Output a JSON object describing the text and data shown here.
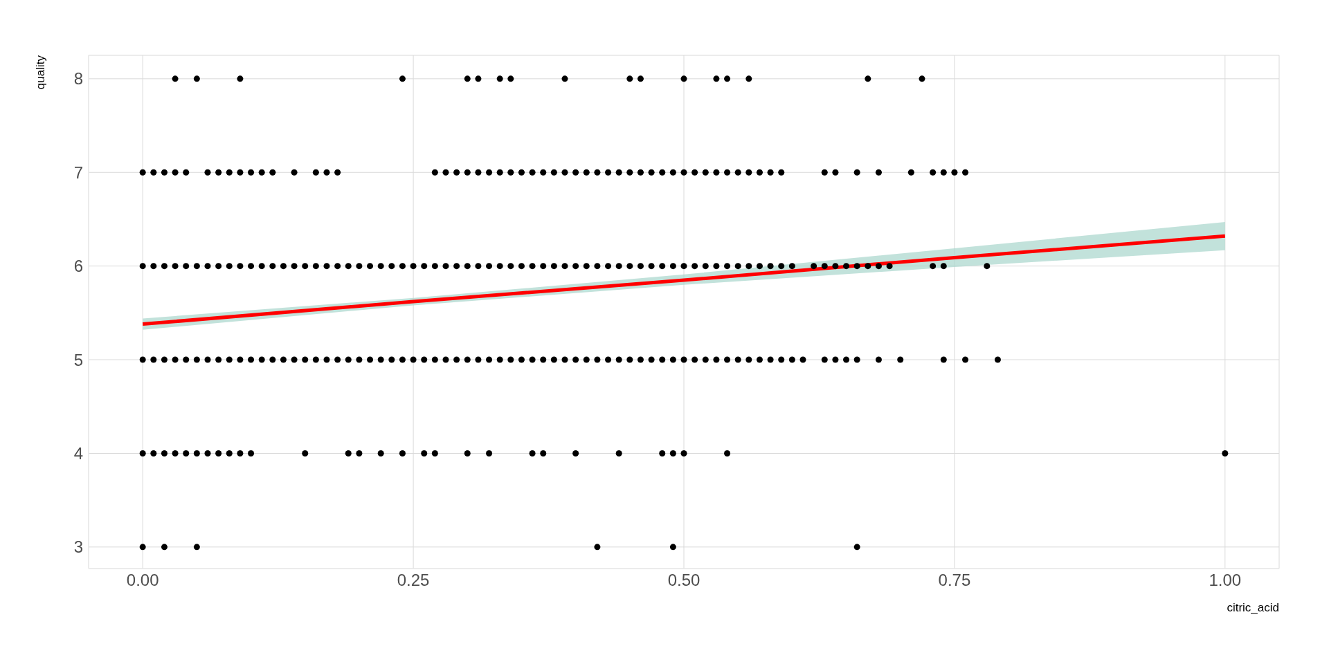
{
  "chart_data": {
    "type": "scatter",
    "xlabel": "citric_acid",
    "ylabel": "quality",
    "xlim": [
      -0.05,
      1.05
    ],
    "ylim": [
      2.77,
      8.25
    ],
    "xticks": [
      {
        "value": 0,
        "label": "0.00"
      },
      {
        "value": 0.25,
        "label": "0.25"
      },
      {
        "value": 0.5,
        "label": "0.50"
      },
      {
        "value": 0.75,
        "label": "0.75"
      },
      {
        "value": 1,
        "label": "1.00"
      }
    ],
    "yticks": [
      3,
      4,
      5,
      6,
      7,
      8
    ],
    "grid": true,
    "series": [
      {
        "marker": "circle",
        "color": "#000000",
        "x": [
          0.03,
          0.05,
          0.09,
          0.24,
          0.3,
          0.31,
          0.33,
          0.34,
          0.39,
          0.45,
          0.46,
          0.5,
          0.53,
          0.54,
          0.56,
          0.67,
          0.72
        ],
        "values": [
          8,
          8,
          8,
          8,
          8,
          8,
          8,
          8,
          8,
          8,
          8,
          8,
          8,
          8,
          8,
          8,
          8
        ]
      },
      {
        "marker": "circle",
        "color": "#000000",
        "x": [
          0,
          0.01,
          0.02,
          0.03,
          0.04,
          0.06,
          0.07,
          0.08,
          0.09,
          0.1,
          0.11,
          0.12,
          0.14,
          0.16,
          0.17,
          0.18,
          0.27,
          0.28,
          0.29,
          0.3,
          0.31,
          0.32,
          0.33,
          0.34,
          0.35,
          0.36,
          0.37,
          0.38,
          0.39,
          0.4,
          0.41,
          0.42,
          0.43,
          0.44,
          0.45,
          0.46,
          0.47,
          0.48,
          0.49,
          0.5,
          0.51,
          0.52,
          0.53,
          0.54,
          0.55,
          0.56,
          0.57,
          0.58,
          0.59,
          0.63,
          0.64,
          0.66,
          0.68,
          0.71,
          0.73,
          0.74,
          0.75,
          0.76
        ],
        "values": [
          7,
          7,
          7,
          7,
          7,
          7,
          7,
          7,
          7,
          7,
          7,
          7,
          7,
          7,
          7,
          7,
          7,
          7,
          7,
          7,
          7,
          7,
          7,
          7,
          7,
          7,
          7,
          7,
          7,
          7,
          7,
          7,
          7,
          7,
          7,
          7,
          7,
          7,
          7,
          7,
          7,
          7,
          7,
          7,
          7,
          7,
          7,
          7,
          7,
          7,
          7,
          7,
          7,
          7,
          7,
          7,
          7,
          7
        ]
      },
      {
        "marker": "circle",
        "color": "#000000",
        "x": [
          0,
          0.01,
          0.02,
          0.03,
          0.04,
          0.05,
          0.06,
          0.07,
          0.08,
          0.09,
          0.1,
          0.11,
          0.12,
          0.13,
          0.14,
          0.15,
          0.16,
          0.17,
          0.18,
          0.19,
          0.2,
          0.21,
          0.22,
          0.23,
          0.24,
          0.25,
          0.26,
          0.27,
          0.28,
          0.29,
          0.3,
          0.31,
          0.32,
          0.33,
          0.34,
          0.35,
          0.36,
          0.37,
          0.38,
          0.39,
          0.4,
          0.41,
          0.42,
          0.43,
          0.44,
          0.45,
          0.46,
          0.47,
          0.48,
          0.49,
          0.5,
          0.51,
          0.52,
          0.53,
          0.54,
          0.55,
          0.56,
          0.57,
          0.58,
          0.59,
          0.6,
          0.62,
          0.63,
          0.64,
          0.65,
          0.66,
          0.67,
          0.68,
          0.69,
          0.73,
          0.74,
          0.78
        ],
        "values": [
          6,
          6,
          6,
          6,
          6,
          6,
          6,
          6,
          6,
          6,
          6,
          6,
          6,
          6,
          6,
          6,
          6,
          6,
          6,
          6,
          6,
          6,
          6,
          6,
          6,
          6,
          6,
          6,
          6,
          6,
          6,
          6,
          6,
          6,
          6,
          6,
          6,
          6,
          6,
          6,
          6,
          6,
          6,
          6,
          6,
          6,
          6,
          6,
          6,
          6,
          6,
          6,
          6,
          6,
          6,
          6,
          6,
          6,
          6,
          6,
          6,
          6,
          6,
          6,
          6,
          6,
          6,
          6,
          6,
          6,
          6,
          6
        ]
      },
      {
        "marker": "circle",
        "color": "#000000",
        "x": [
          0,
          0.01,
          0.02,
          0.03,
          0.04,
          0.05,
          0.06,
          0.07,
          0.08,
          0.09,
          0.1,
          0.11,
          0.12,
          0.13,
          0.14,
          0.15,
          0.16,
          0.17,
          0.18,
          0.19,
          0.2,
          0.21,
          0.22,
          0.23,
          0.24,
          0.25,
          0.26,
          0.27,
          0.28,
          0.29,
          0.3,
          0.31,
          0.32,
          0.33,
          0.34,
          0.35,
          0.36,
          0.37,
          0.38,
          0.39,
          0.4,
          0.41,
          0.42,
          0.43,
          0.44,
          0.45,
          0.46,
          0.47,
          0.48,
          0.49,
          0.5,
          0.51,
          0.52,
          0.53,
          0.54,
          0.55,
          0.56,
          0.57,
          0.58,
          0.59,
          0.6,
          0.61,
          0.63,
          0.64,
          0.65,
          0.66,
          0.68,
          0.7,
          0.74,
          0.76,
          0.79
        ],
        "values": [
          5,
          5,
          5,
          5,
          5,
          5,
          5,
          5,
          5,
          5,
          5,
          5,
          5,
          5,
          5,
          5,
          5,
          5,
          5,
          5,
          5,
          5,
          5,
          5,
          5,
          5,
          5,
          5,
          5,
          5,
          5,
          5,
          5,
          5,
          5,
          5,
          5,
          5,
          5,
          5,
          5,
          5,
          5,
          5,
          5,
          5,
          5,
          5,
          5,
          5,
          5,
          5,
          5,
          5,
          5,
          5,
          5,
          5,
          5,
          5,
          5,
          5,
          5,
          5,
          5,
          5,
          5,
          5,
          5,
          5,
          5
        ]
      },
      {
        "marker": "circle",
        "color": "#000000",
        "x": [
          0,
          0.01,
          0.02,
          0.03,
          0.04,
          0.05,
          0.06,
          0.07,
          0.08,
          0.09,
          0.1,
          0.15,
          0.19,
          0.2,
          0.22,
          0.24,
          0.26,
          0.27,
          0.3,
          0.32,
          0.36,
          0.37,
          0.4,
          0.44,
          0.48,
          0.49,
          0.5,
          0.54,
          1
        ],
        "values": [
          4,
          4,
          4,
          4,
          4,
          4,
          4,
          4,
          4,
          4,
          4,
          4,
          4,
          4,
          4,
          4,
          4,
          4,
          4,
          4,
          4,
          4,
          4,
          4,
          4,
          4,
          4,
          4,
          4
        ]
      },
      {
        "marker": "circle",
        "color": "#000000",
        "x": [
          0,
          0.02,
          0.05,
          0.42,
          0.49,
          0.66
        ],
        "values": [
          3,
          3,
          3,
          3,
          3,
          3
        ]
      },
      {
        "type": "line",
        "color": "#ff0000",
        "x": [
          0,
          0.25,
          0.5,
          0.75,
          1
        ],
        "values": [
          5.38,
          5.62,
          5.85,
          6.09,
          6.32
        ],
        "lower": [
          5.32,
          5.58,
          5.8,
          5.99,
          6.17
        ],
        "upper": [
          5.44,
          5.66,
          5.91,
          6.19,
          6.47
        ]
      }
    ]
  }
}
